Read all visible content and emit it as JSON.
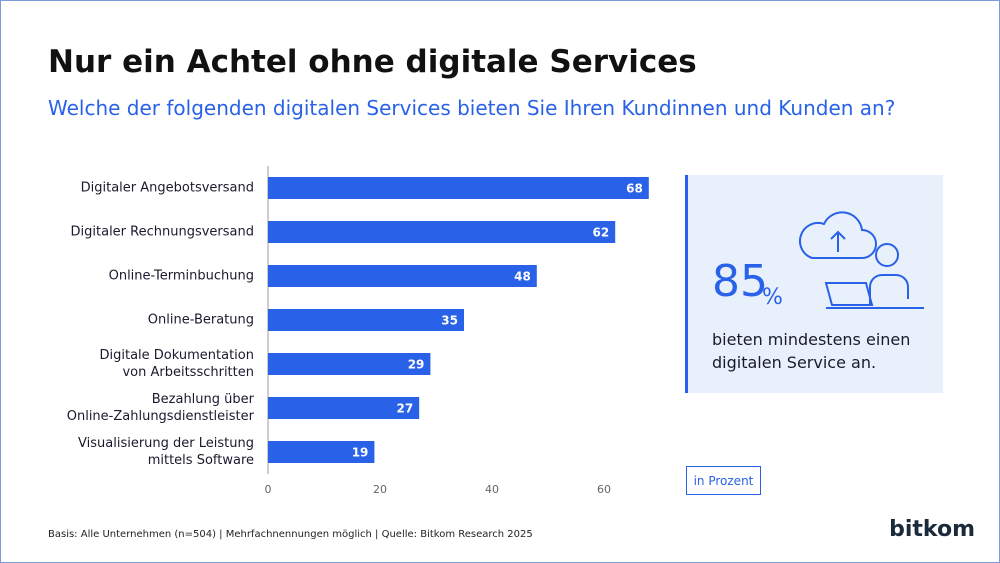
{
  "chart_data": {
    "type": "bar",
    "orientation": "horizontal",
    "title": "Nur ein Achtel ohne digitale Services",
    "subtitle": "Welche der folgenden digitalen Services bieten Sie Ihren Kundinnen und Kunden an?",
    "categories": [
      "Digitaler Angebotsversand",
      "Digitaler Rechnungsversand",
      "Online-Terminbuchung",
      "Online-Beratung",
      "Digitale Dokumentation\nvon Arbeitsschritten",
      "Bezahlung über\nOnline-Zahlungsdienstleister",
      "Visualisierung der Leistung\nmittels Software"
    ],
    "values": [
      68,
      62,
      48,
      35,
      29,
      27,
      19
    ],
    "color": "#2962e8",
    "xlim": [
      0,
      70
    ],
    "xticks": [
      0,
      20,
      40,
      60
    ],
    "grid": false,
    "unit_note": "in Prozent"
  },
  "callout": {
    "value": 85,
    "unit": "%",
    "text": "bieten mindestens einen\ndigitalen Service an."
  },
  "footnote": "Basis: Alle Unternehmen (n=504) | Mehrfachnennungen möglich | Quelle: Bitkom Research 2025",
  "logo": "bitkom"
}
